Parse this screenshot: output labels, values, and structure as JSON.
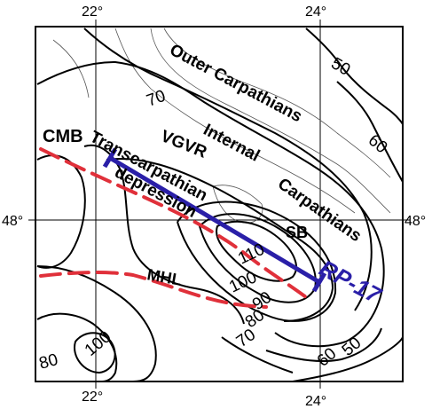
{
  "map": {
    "longitude_ticks_top": [
      "22°",
      "24°"
    ],
    "longitude_ticks_bottom": [
      "22°",
      "24°"
    ],
    "latitude_ticks_left": [
      "48°"
    ],
    "latitude_ticks_right": [
      "48°"
    ],
    "region_labels": {
      "outer_carpathians": "Outer Carpathians",
      "internal_carpathians_1": "Internal",
      "internal_carpathians_2": "Carpathians",
      "vgvr": "VGVR",
      "transcarpathian": "Transcarpathian",
      "depression": "depression",
      "cmb": "CMB",
      "sb": "SB",
      "mhl": "MHL"
    },
    "profile": {
      "label": "RP-17",
      "color": "#2a1fa8"
    },
    "boundary_color": "#e0303a",
    "contour_labels": [
      "70",
      "50",
      "60",
      "110",
      "100",
      "90",
      "80",
      "70",
      "100",
      "80",
      "60",
      "50"
    ]
  }
}
